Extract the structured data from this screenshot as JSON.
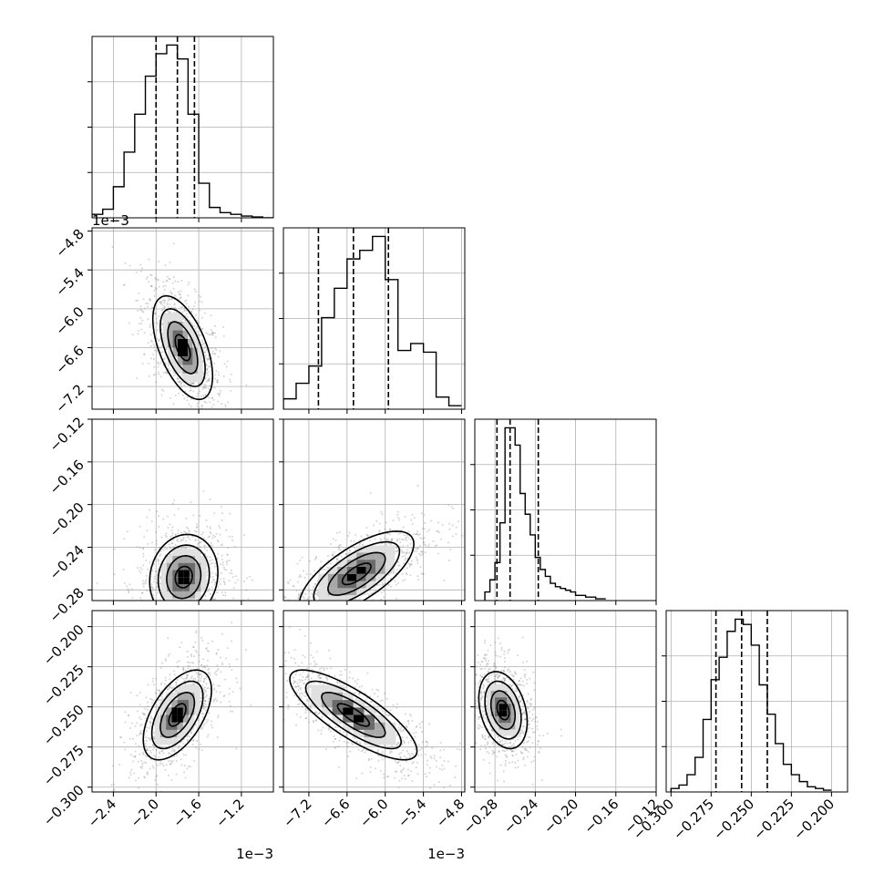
{
  "figure": {
    "type": "corner-plot",
    "background": "#ffffff",
    "frame_color": "#000000",
    "grid_color": "#b0b0b0",
    "point_color": "#888888",
    "density_colors": [
      "#ffffff",
      "#e0e0e0",
      "#a8a8a8",
      "#6a6a6a",
      "#000000"
    ]
  },
  "chart_data": [
    {
      "type": "histogram",
      "row": 0,
      "col": 0,
      "xlim": [
        -2.6,
        -0.9
      ],
      "ylim": [
        0,
        1.05
      ],
      "bins": [
        -2.6,
        -2.5,
        -2.4,
        -2.3,
        -2.2,
        -2.1,
        -2.0,
        -1.9,
        -1.8,
        -1.7,
        -1.6,
        -1.5,
        -1.4,
        -1.3,
        -1.2,
        -1.1,
        -1.0,
        -0.9
      ],
      "counts": [
        0.02,
        0.05,
        0.18,
        0.38,
        0.6,
        0.82,
        0.95,
        1.0,
        0.92,
        0.6,
        0.2,
        0.06,
        0.03,
        0.02,
        0.01,
        0.005,
        0.0
      ],
      "quantiles": [
        -2.0,
        -1.8,
        -1.64
      ],
      "offset_label": "1e−3"
    },
    {
      "type": "histogram",
      "row": 1,
      "col": 1,
      "xlim": [
        -7.6,
        -4.75
      ],
      "ylim": [
        0,
        1.05
      ],
      "bins": [
        -7.6,
        -7.4,
        -7.2,
        -7.0,
        -6.8,
        -6.6,
        -6.4,
        -6.2,
        -6.0,
        -5.8,
        -5.6,
        -5.4,
        -5.2,
        -5.0,
        -4.8
      ],
      "counts": [
        0.06,
        0.15,
        0.25,
        0.53,
        0.7,
        0.87,
        0.92,
        1.0,
        0.75,
        0.34,
        0.38,
        0.33,
        0.07,
        0.02
      ],
      "quantiles": [
        -7.05,
        -6.5,
        -5.95
      ]
    },
    {
      "type": "histogram",
      "row": 2,
      "col": 2,
      "xlim": [
        -0.3,
        -0.12
      ],
      "ylim": [
        0,
        1.05
      ],
      "bins": [
        -0.29,
        -0.285,
        -0.28,
        -0.275,
        -0.27,
        -0.265,
        -0.26,
        -0.255,
        -0.25,
        -0.245,
        -0.24,
        -0.235,
        -0.23,
        -0.225,
        -0.22,
        -0.215,
        -0.21,
        -0.205,
        -0.2,
        -0.19,
        -0.18,
        -0.17
      ],
      "counts": [
        0.05,
        0.12,
        0.22,
        0.45,
        1.0,
        1.0,
        0.9,
        0.62,
        0.5,
        0.38,
        0.25,
        0.18,
        0.14,
        0.1,
        0.08,
        0.07,
        0.06,
        0.05,
        0.03,
        0.02,
        0.01
      ],
      "quantiles": [
        -0.278,
        -0.265,
        -0.237
      ]
    },
    {
      "type": "histogram",
      "row": 3,
      "col": 3,
      "xlim": [
        -0.303,
        -0.19
      ],
      "ylim": [
        0,
        1.05
      ],
      "bins": [
        -0.3,
        -0.295,
        -0.29,
        -0.285,
        -0.28,
        -0.275,
        -0.27,
        -0.265,
        -0.26,
        -0.255,
        -0.25,
        -0.245,
        -0.24,
        -0.235,
        -0.23,
        -0.225,
        -0.22,
        -0.215,
        -0.21,
        -0.205,
        -0.2
      ],
      "counts": [
        0.02,
        0.04,
        0.1,
        0.2,
        0.42,
        0.65,
        0.78,
        0.93,
        1.0,
        0.97,
        0.85,
        0.62,
        0.45,
        0.28,
        0.16,
        0.1,
        0.06,
        0.03,
        0.02,
        0.01
      ],
      "quantiles": [
        -0.272,
        -0.256,
        -0.24
      ]
    },
    {
      "type": "2d-density",
      "row": 1,
      "col": 0,
      "xlim": [
        -2.6,
        -0.9
      ],
      "ylim": [
        -7.55,
        -4.75
      ],
      "center": [
        -1.75,
        -6.6
      ],
      "sigma": [
        0.14,
        0.4
      ],
      "rho": -0.55,
      "contour_levels": [
        0.5,
        1.0,
        1.5,
        2.0
      ],
      "ylabel_offset": "1e−3"
    },
    {
      "type": "2d-density",
      "row": 2,
      "col": 0,
      "xlim": [
        -2.6,
        -0.9
      ],
      "ylim": [
        -0.29,
        -0.12
      ],
      "center": [
        -1.74,
        -0.268
      ],
      "sigma": [
        0.16,
        0.02
      ],
      "rho": 0.1,
      "contour_levels": [
        0.5,
        1.0,
        1.5,
        2.0
      ]
    },
    {
      "type": "2d-density",
      "row": 2,
      "col": 1,
      "xlim": [
        -7.6,
        -4.75
      ],
      "ylim": [
        -0.29,
        -0.12
      ],
      "center": [
        -6.45,
        -0.265
      ],
      "sigma": [
        0.45,
        0.02
      ],
      "rho": 0.7,
      "contour_levels": [
        0.5,
        1.0,
        1.5,
        2.0
      ]
    },
    {
      "type": "2d-density",
      "row": 3,
      "col": 0,
      "xlim": [
        -2.6,
        -0.9
      ],
      "ylim": [
        -0.303,
        -0.19
      ],
      "center": [
        -1.8,
        -0.255
      ],
      "sigma": [
        0.16,
        0.014
      ],
      "rho": 0.55,
      "contour_levels": [
        0.5,
        1.0,
        1.5,
        2.0
      ]
    },
    {
      "type": "2d-density",
      "row": 3,
      "col": 1,
      "xlim": [
        -7.6,
        -4.75
      ],
      "ylim": [
        -0.303,
        -0.19
      ],
      "center": [
        -6.5,
        -0.255
      ],
      "sigma": [
        0.5,
        0.014
      ],
      "rho": -0.8,
      "contour_levels": [
        0.5,
        1.0,
        1.5,
        2.0
      ]
    },
    {
      "type": "2d-density",
      "row": 3,
      "col": 2,
      "xlim": [
        -0.3,
        -0.12
      ],
      "ylim": [
        -0.303,
        -0.19
      ],
      "center": [
        -0.272,
        -0.252
      ],
      "sigma": [
        0.012,
        0.012
      ],
      "rho": -0.3,
      "contour_levels": [
        0.5,
        1.0,
        1.5,
        2.0
      ]
    }
  ],
  "axes": {
    "col_xlim": [
      [
        -2.6,
        -0.9
      ],
      [
        -7.6,
        -4.75
      ],
      [
        -0.3,
        -0.12
      ],
      [
        -0.303,
        -0.19
      ]
    ],
    "row_ylim": [
      null,
      [
        -7.55,
        -4.75
      ],
      [
        -0.29,
        -0.12
      ],
      [
        -0.303,
        -0.19
      ]
    ],
    "x_ticks": [
      [
        {
          "v": -2.4,
          "label": "−2.4"
        },
        {
          "v": -2.0,
          "label": "−2.0"
        },
        {
          "v": -1.6,
          "label": "−1.6"
        },
        {
          "v": -1.2,
          "label": "−1.2"
        }
      ],
      [
        {
          "v": -7.2,
          "label": "−7.2"
        },
        {
          "v": -6.6,
          "label": "−6.6"
        },
        {
          "v": -6.0,
          "label": "−6.0"
        },
        {
          "v": -5.4,
          "label": "−5.4"
        },
        {
          "v": -4.8,
          "label": "−4.8"
        }
      ],
      [
        {
          "v": -0.28,
          "label": "−0.28"
        },
        {
          "v": -0.24,
          "label": "−0.24"
        },
        {
          "v": -0.2,
          "label": "−0.20"
        },
        {
          "v": -0.16,
          "label": "−0.16"
        },
        {
          "v": -0.12,
          "label": "−0.12"
        }
      ],
      [
        {
          "v": -0.3,
          "label": "−0.300"
        },
        {
          "v": -0.275,
          "label": "−0.275"
        },
        {
          "v": -0.25,
          "label": "−0.250"
        },
        {
          "v": -0.225,
          "label": "−0.225"
        },
        {
          "v": -0.2,
          "label": "−0.200"
        }
      ]
    ],
    "y_ticks": [
      null,
      [
        {
          "v": -4.8,
          "label": "−4.8"
        },
        {
          "v": -5.4,
          "label": "−5.4"
        },
        {
          "v": -6.0,
          "label": "−6.0"
        },
        {
          "v": -6.6,
          "label": "−6.6"
        },
        {
          "v": -7.2,
          "label": "−7.2"
        }
      ],
      [
        {
          "v": -0.12,
          "label": "−0.12"
        },
        {
          "v": -0.16,
          "label": "−0.16"
        },
        {
          "v": -0.2,
          "label": "−0.20"
        },
        {
          "v": -0.24,
          "label": "−0.24"
        },
        {
          "v": -0.28,
          "label": "−0.28"
        }
      ],
      [
        {
          "v": -0.2,
          "label": "−0.200"
        },
        {
          "v": -0.225,
          "label": "−0.225"
        },
        {
          "v": -0.25,
          "label": "−0.250"
        },
        {
          "v": -0.275,
          "label": "−0.275"
        },
        {
          "v": -0.3,
          "label": "−0.300"
        }
      ]
    ],
    "x_offset_labels": [
      "1e−3",
      "1e−3",
      "",
      ""
    ],
    "y_offset_labels": [
      "",
      "1e−3",
      "",
      ""
    ]
  }
}
